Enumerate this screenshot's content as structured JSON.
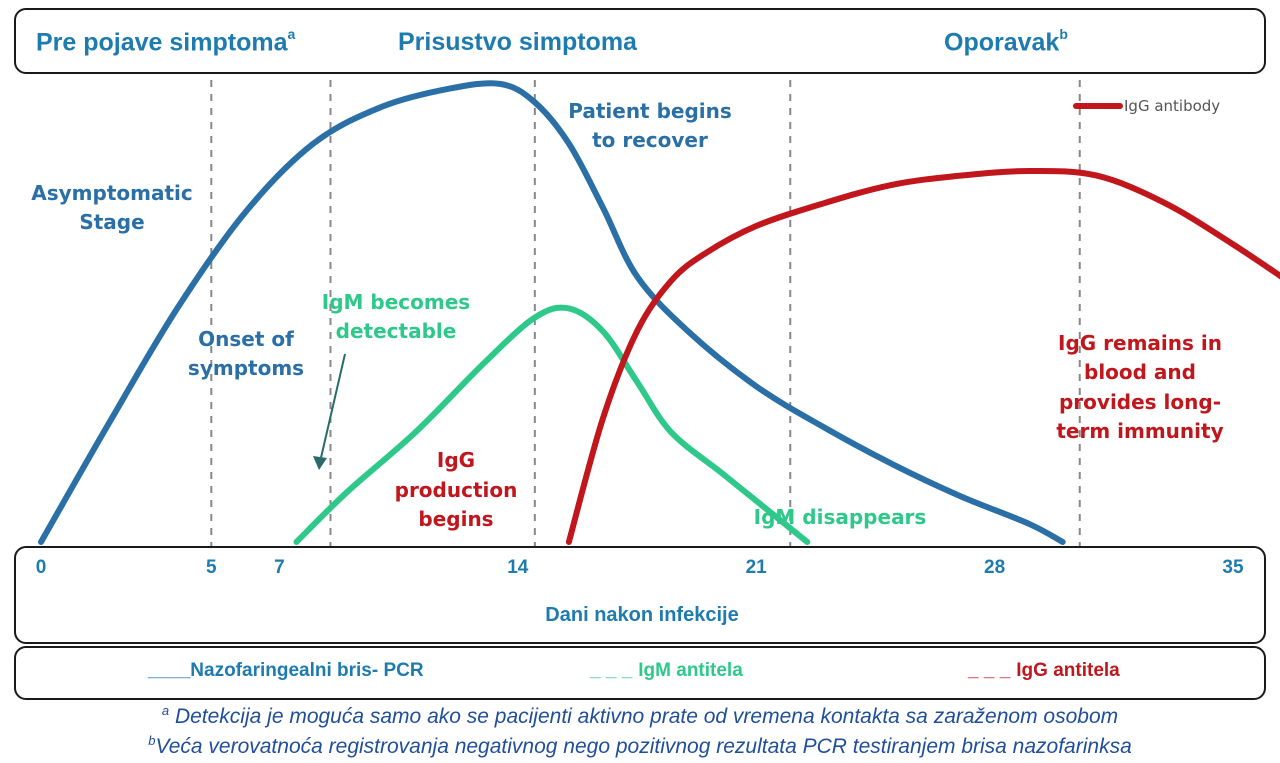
{
  "header": {
    "phase1": "Pre pojave simptoma",
    "phase1_mark": "a",
    "phase2": "Prisustvo simptoma",
    "phase3": "Oporavak",
    "phase3_mark": "b"
  },
  "axis": {
    "xlabel": "Dani nakon infekcije"
  },
  "legend": {
    "pcr": {
      "dash": "____",
      "label": "Nazofaringealni bris- PCR",
      "color": "#1e7bb0"
    },
    "igm": {
      "dash": "_ _ _",
      "label": "IgM antitela",
      "color": "#2ec98a"
    },
    "igg": {
      "dash": "_ _ _",
      "label": "IgG antitela",
      "color": "#c0161c"
    }
  },
  "footnotes": {
    "a_mark": "a",
    "a_text": "Detekcija je moguća samo ako se pacijenti aktivno prate od vremena kontakta sa zaraženom osobom",
    "b_mark": "b",
    "b_text": "Veća verovatnoća registrovanja negativnog nego pozitivnog rezultata PCR testiranjem brisa nazofarinksa"
  },
  "chart_data": {
    "type": "line",
    "xlabel": "Dani nakon infekcije",
    "ylabel": "",
    "x_ticks": [
      0,
      5,
      7,
      14,
      21,
      28,
      35
    ],
    "xlim": [
      0,
      38
    ],
    "ylim": [
      0,
      100
    ],
    "grid": false,
    "vlines": [
      5,
      8.5,
      14.5,
      22,
      30.5
    ],
    "series": [
      {
        "key": "pcr",
        "color": "#2a6fa5",
        "x": [
          0,
          2,
          4,
          6,
          8,
          10,
          12,
          13.5,
          14.5,
          15.5,
          16.5,
          17.5,
          19,
          21,
          23,
          25,
          27,
          29,
          30
        ],
        "y": [
          0,
          26,
          51,
          72,
          87,
          95,
          99,
          100,
          96,
          87,
          73,
          58,
          46,
          34,
          25,
          17,
          10,
          4,
          0
        ]
      },
      {
        "key": "igm",
        "color": "#2ec98a",
        "x": [
          7.5,
          9,
          11,
          13,
          14.5,
          15.5,
          16.5,
          17.5,
          18.5,
          20,
          21.5,
          22.5
        ],
        "y": [
          0,
          11,
          24,
          39,
          49,
          51,
          46,
          35,
          24,
          15,
          6,
          0
        ]
      },
      {
        "key": "igg",
        "color": "#c0161c",
        "x": [
          15.5,
          16.5,
          17.5,
          18.5,
          19.5,
          21,
          23,
          25,
          27,
          29,
          31,
          33,
          35,
          37,
          38
        ],
        "y": [
          0,
          27,
          46,
          57,
          63,
          69,
          74,
          78,
          80,
          81,
          80,
          74,
          65,
          55,
          50
        ]
      }
    ],
    "legend": {
      "label": "IgG antibody",
      "position": "top-right",
      "color": "#c0161c"
    },
    "annotations": [
      {
        "key": "asymptomatic",
        "text": "Asymptomatic Stage",
        "color": "#2a6fa5"
      },
      {
        "key": "onset",
        "text": "Onset of symptoms",
        "color": "#2a6fa5"
      },
      {
        "key": "igm_detect",
        "text": "IgM becomes detectable",
        "color": "#2ec98a"
      },
      {
        "key": "igg_begins",
        "text": "IgG production begins",
        "color": "#c0161c"
      },
      {
        "key": "recover",
        "text": "Patient begins to recover",
        "color": "#2a6fa5"
      },
      {
        "key": "igm_gone",
        "text": "IgM disappears",
        "color": "#2ec98a"
      },
      {
        "key": "igg_remains",
        "text": "IgG remains in blood and provides long-term immunity",
        "color": "#c0161c"
      }
    ]
  }
}
